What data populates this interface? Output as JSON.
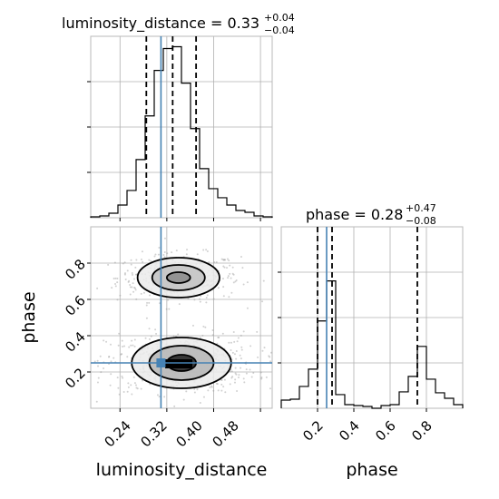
{
  "chart_data": {
    "type": "corner",
    "parameters": [
      "luminosity_distance",
      "phase"
    ],
    "truth": {
      "luminosity_distance": 0.31,
      "phase": 0.25
    },
    "marginals": [
      {
        "name": "luminosity_distance",
        "title_prefix": "luminosity_distance = ",
        "median": "0.33",
        "err_plus": "+0.04",
        "err_minus": "−0.04",
        "quantiles": [
          0.285,
          0.33,
          0.37
        ],
        "xlim": [
          0.19,
          0.5
        ],
        "bin_edges": [
          0.19,
          0.2055,
          0.221,
          0.2365,
          0.252,
          0.2675,
          0.283,
          0.2985,
          0.314,
          0.3295,
          0.345,
          0.3605,
          0.376,
          0.3915,
          0.407,
          0.4225,
          0.438,
          0.4535,
          0.469,
          0.4845,
          0.5
        ],
        "counts": [
          1,
          2,
          5,
          14,
          30,
          64,
          112,
          162,
          186,
          188,
          148,
          98,
          54,
          32,
          22,
          14,
          8,
          6,
          2,
          1
        ],
        "count_max": 190
      },
      {
        "name": "phase",
        "title_prefix": "phase = ",
        "median": "0.28",
        "err_plus": "+0.47",
        "err_minus": "−0.08",
        "quantiles": [
          0.2,
          0.28,
          0.75
        ],
        "xlim": [
          0.0,
          1.0
        ],
        "bin_edges": [
          0.0,
          0.05,
          0.1,
          0.15,
          0.2,
          0.25,
          0.3,
          0.35,
          0.4,
          0.45,
          0.5,
          0.55,
          0.6,
          0.65,
          0.7,
          0.75,
          0.8,
          0.85,
          0.9,
          0.95,
          1.0
        ],
        "counts": [
          9,
          10,
          24,
          43,
          96,
          140,
          15,
          4,
          3,
          2,
          0,
          3,
          4,
          18,
          35,
          68,
          32,
          17,
          11,
          4
        ],
        "count_max": 190
      }
    ],
    "joint": {
      "x": "luminosity_distance",
      "y": "phase",
      "xlim": [
        0.19,
        0.5
      ],
      "ylim": [
        0.0,
        1.0
      ],
      "modes": [
        {
          "cx": 0.34,
          "cy": 0.72,
          "rx_levels": [
            0.07,
            0.045,
            0.02
          ],
          "ry_levels": [
            0.11,
            0.07,
            0.03
          ],
          "fills": [
            "#ebebeb",
            "#c2c2c2",
            "#8a8a8a"
          ]
        },
        {
          "cx": 0.345,
          "cy": 0.25,
          "rx_levels": [
            0.085,
            0.055,
            0.025
          ],
          "ry_levels": [
            0.14,
            0.095,
            0.045
          ],
          "fills": [
            "#ebebeb",
            "#b5b5b5",
            "#202020"
          ]
        }
      ]
    },
    "axes": {
      "bottom_left": {
        "xlabel": "luminosity_distance",
        "ylabel": "phase",
        "xticks": [
          "0.24",
          "0.32",
          "0.40",
          "0.48"
        ],
        "xtick_values": [
          0.24,
          0.32,
          0.4,
          0.48
        ],
        "yticks": [
          "0.2",
          "0.4",
          "0.6",
          "0.8"
        ],
        "ytick_values": [
          0.2,
          0.4,
          0.6,
          0.8
        ]
      },
      "bottom_right": {
        "xlabel": "phase",
        "xticks": [
          "0.2",
          "0.4",
          "0.6",
          "0.8"
        ],
        "xtick_values": [
          0.2,
          0.4,
          0.6,
          0.8
        ]
      }
    },
    "grid": true
  }
}
